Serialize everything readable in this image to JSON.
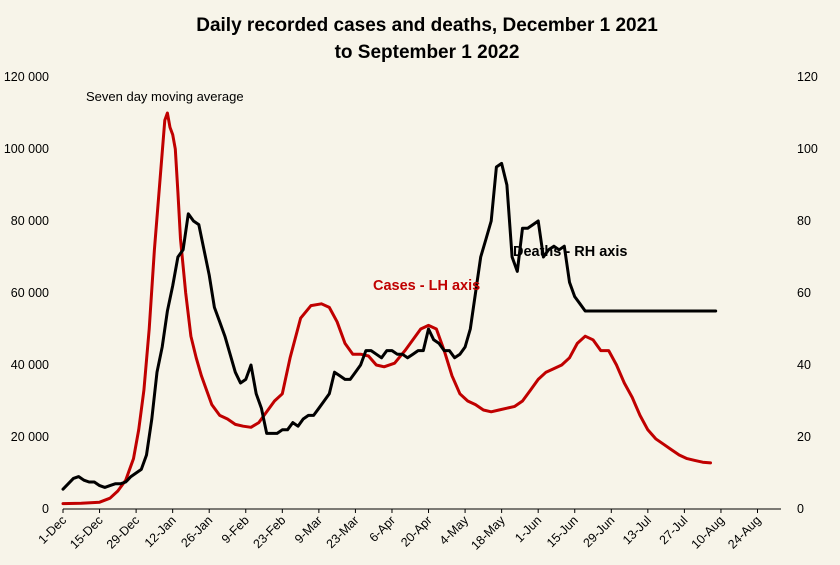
{
  "chart_data": {
    "type": "line",
    "title": [
      "Daily recorded cases and deaths,  December 1 2021",
      "to September 1 2022"
    ],
    "annotation": "Seven day moving average",
    "grid": false,
    "colors": {
      "cases": "#c00000",
      "deaths": "#000000",
      "background": "#f7f4e9"
    },
    "x_tick_labels": [
      "1-Dec",
      "15-Dec",
      "29-Dec",
      "12-Jan",
      "26-Jan",
      "9-Feb",
      "23-Feb",
      "9-Mar",
      "23-Mar",
      "6-Apr",
      "20-Apr",
      "4-May",
      "18-May",
      "1-Jun",
      "15-Jun",
      "29-Jun",
      "13-Jul",
      "27-Jul",
      "10-Aug",
      "24-Aug"
    ],
    "y_left": {
      "range": [
        0,
        120000
      ],
      "ticks": [
        "0",
        "20 000",
        "40 000",
        "60 000",
        "80 000",
        "100 000",
        "120 000"
      ]
    },
    "y_right": {
      "range": [
        0,
        120
      ],
      "ticks": [
        "0",
        "20",
        "40",
        "60",
        "80",
        "100",
        "120"
      ]
    },
    "series": [
      {
        "name": "Cases - LH axis",
        "axis": "left",
        "x_day": [
          0,
          7,
          14,
          18,
          21,
          24,
          27,
          29,
          31,
          33,
          35,
          37,
          39,
          40,
          41,
          42,
          43,
          44,
          45,
          47,
          49,
          51,
          53,
          55,
          57,
          60,
          63,
          66,
          69,
          72,
          75,
          78,
          81,
          84,
          87,
          91,
          95,
          99,
          102,
          105,
          108,
          111,
          114,
          117,
          120,
          123,
          127,
          131,
          134,
          137,
          140,
          143,
          146,
          149,
          152,
          155,
          158,
          161,
          164,
          167,
          170,
          173,
          176,
          179,
          182,
          185,
          188,
          191,
          194,
          197,
          200,
          203,
          206,
          209,
          212,
          215,
          218,
          221,
          224,
          227,
          230,
          233,
          236,
          239,
          242,
          245,
          248,
          251,
          254,
          257,
          260,
          263,
          266,
          269,
          272,
          275
        ],
        "values": [
          1500,
          1600,
          1900,
          3000,
          5000,
          8000,
          14000,
          22000,
          33000,
          50000,
          72000,
          90000,
          108000,
          110000,
          106000,
          104000,
          100000,
          88000,
          75000,
          60000,
          48000,
          42000,
          37000,
          33000,
          29000,
          26000,
          25000,
          23500,
          23000,
          22700,
          24000,
          27000,
          30000,
          32000,
          42000,
          53000,
          56500,
          57000,
          56000,
          52000,
          46000,
          43000,
          43000,
          42500,
          40000,
          39500,
          40500,
          44000,
          47000,
          50000,
          51000,
          50000,
          44000,
          37000,
          32000,
          30000,
          29000,
          27500,
          27000,
          27500,
          28000,
          28500,
          30000,
          33000,
          36000,
          38000,
          39000,
          40000,
          42000,
          46000,
          48000,
          47000,
          44000,
          44000,
          40000,
          35000,
          31000,
          26000,
          22000,
          19500,
          18000,
          16500,
          15000,
          14000,
          13500,
          13000,
          12800,
          12300,
          12000,
          11800,
          11700,
          11600,
          11500,
          11500,
          11500,
          11500
        ],
        "note_end_day": 250
      },
      {
        "name": "Deaths - RH axis",
        "axis": "right",
        "x_day": [
          0,
          2,
          4,
          6,
          8,
          10,
          12,
          14,
          16,
          18,
          20,
          22,
          24,
          26,
          28,
          30,
          32,
          34,
          36,
          38,
          40,
          42,
          44,
          46,
          48,
          50,
          52,
          54,
          56,
          58,
          60,
          62,
          64,
          66,
          68,
          70,
          72,
          74,
          76,
          78,
          80,
          82,
          84,
          86,
          88,
          90,
          92,
          94,
          96,
          98,
          100,
          102,
          104,
          106,
          108,
          110,
          112,
          114,
          116,
          118,
          120,
          122,
          124,
          126,
          128,
          130,
          132,
          134,
          136,
          138,
          140,
          142,
          144,
          146,
          148,
          150,
          152,
          154,
          156,
          158,
          160,
          162,
          164,
          166,
          168,
          170,
          172,
          174,
          176,
          178,
          180,
          182,
          184,
          186,
          188,
          190,
          192,
          194,
          196,
          198,
          200,
          202,
          204,
          206,
          208,
          210,
          212,
          214,
          216,
          218,
          220,
          222,
          224,
          226,
          228,
          230,
          232,
          234,
          236,
          238,
          240,
          242,
          244,
          246,
          248,
          250
        ],
        "values": [
          5.5,
          7,
          8.5,
          9,
          8,
          7.5,
          7.5,
          6.5,
          6,
          6.5,
          7,
          7,
          7.5,
          9,
          10,
          11,
          15,
          25,
          38,
          45,
          55,
          62,
          70,
          72,
          82,
          80,
          79,
          72,
          65,
          56,
          52,
          48,
          43,
          38,
          35,
          36,
          40,
          32,
          28,
          21,
          21,
          21,
          22,
          22,
          24,
          23,
          25,
          26,
          26,
          28,
          30,
          32,
          38,
          37,
          36,
          36,
          38,
          40,
          44,
          44,
          43,
          42,
          44,
          44,
          43,
          43,
          42,
          43,
          44,
          44,
          50,
          47,
          46,
          44,
          44,
          42,
          43,
          45,
          50,
          60,
          70,
          75,
          80,
          95,
          96,
          90,
          70,
          66,
          78,
          78,
          79,
          80,
          70,
          72,
          73,
          72,
          73,
          63,
          59,
          57,
          55,
          55,
          55,
          55,
          55,
          55,
          55,
          55,
          55,
          55,
          55,
          55,
          55,
          55,
          55,
          55,
          55,
          55,
          55,
          55,
          55,
          55,
          55,
          55,
          55,
          55
        ]
      }
    ],
    "labels": {
      "cases": "Cases - LH axis",
      "deaths": "Deaths - RH axis"
    }
  }
}
